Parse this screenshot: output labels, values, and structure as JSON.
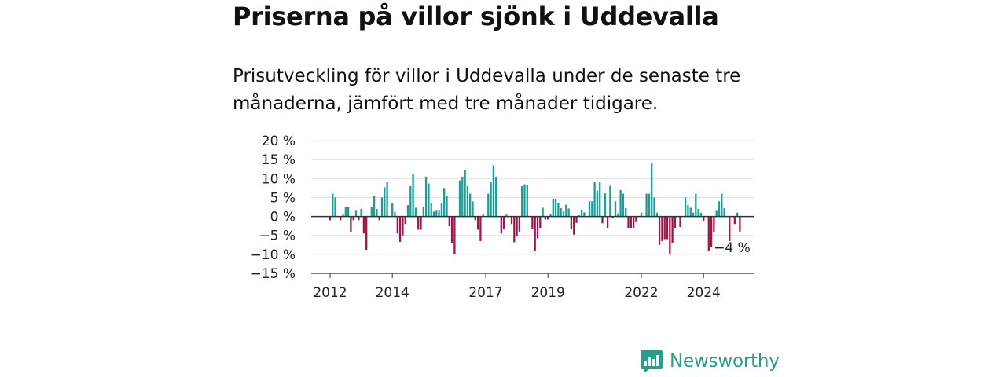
{
  "title": "Priserna på villor sjönk i Uddevalla",
  "subtitle": "Prisutveckling för villor i Uddevalla under de senaste tre månaderna, jämfört med tre månader tidigare.",
  "brand": {
    "name": "Newsworthy",
    "icon": "newsworthy-logo-icon",
    "color": "#2a9d8f"
  },
  "colors": {
    "positive": "#1a9e96",
    "negative": "#a3154a",
    "grid": "#dddddd",
    "axis": "#333333"
  },
  "chart_data": {
    "type": "bar",
    "title": "Priserna på villor sjönk i Uddevalla",
    "xlabel": "",
    "ylabel": "",
    "ylim": [
      -15,
      20
    ],
    "yticks": [
      20,
      15,
      10,
      5,
      0,
      -5,
      -10,
      -15
    ],
    "ytick_labels": [
      "20 %",
      "15 %",
      "10 %",
      "5 %",
      "0 %",
      "−5 %",
      "−10 %",
      "−15 %"
    ],
    "xticks": [
      {
        "label": "2012",
        "index": 0
      },
      {
        "label": "2014",
        "index": 24
      },
      {
        "label": "2017",
        "index": 60
      },
      {
        "label": "2019",
        "index": 84
      },
      {
        "label": "2022",
        "index": 120
      },
      {
        "label": "2024",
        "index": 144
      }
    ],
    "start": "2012-01",
    "frequency": "monthly",
    "annotation": {
      "text": "−4 %",
      "index": 154
    },
    "values": [
      -1,
      6,
      5,
      0,
      -1,
      0.5,
      2.5,
      2.4,
      -4.2,
      -1,
      1.5,
      -1,
      2,
      -4.5,
      -8.8,
      0,
      2.5,
      5.5,
      2,
      -1,
      5,
      7.7,
      9,
      0,
      3.5,
      1.2,
      -4.5,
      -6.7,
      -5,
      -2,
      3,
      8,
      11.2,
      2.3,
      -3.5,
      -3.5,
      2.5,
      10.5,
      8.7,
      3.5,
      1.3,
      1.5,
      1.5,
      3.5,
      7.3,
      5.5,
      -2.6,
      -7,
      -10,
      0,
      9.5,
      10.5,
      12.3,
      8,
      6,
      4,
      -1,
      -3.5,
      -6.5,
      0.7,
      0,
      6,
      9,
      13.5,
      10.5,
      0,
      -4.5,
      -3.3,
      0.5,
      0,
      -2,
      -6.8,
      -5.3,
      -4,
      8,
      8.5,
      8.3,
      0,
      -3.3,
      -9.2,
      -5.8,
      -3,
      2.3,
      -0.8,
      -0.8,
      0.7,
      4.5,
      4.5,
      3.6,
      2.2,
      1.3,
      3.1,
      2.1,
      -3.2,
      -4.8,
      -1.7,
      0.3,
      1.8,
      1.1,
      0,
      4,
      4,
      9,
      6.8,
      9,
      -1.8,
      6.1,
      -3,
      8.1,
      -0.5,
      4,
      0.8,
      7,
      6,
      2.2,
      -3,
      -3,
      -3,
      -1.5,
      0,
      1,
      0,
      6,
      6,
      14,
      5,
      1,
      -7.5,
      -6.5,
      -6,
      -6,
      -9.9,
      -7,
      -3,
      0,
      -2.8,
      0,
      5,
      3,
      2.3,
      1,
      6,
      2,
      1,
      -1.2,
      0,
      -9,
      -8,
      -4,
      1.5,
      4,
      6,
      2.2,
      0,
      -6.5,
      0,
      -2,
      1,
      -4
    ]
  }
}
